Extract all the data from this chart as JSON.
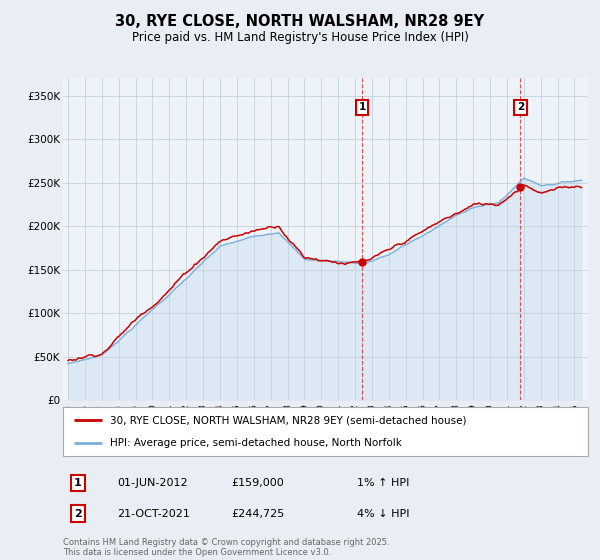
{
  "title": "30, RYE CLOSE, NORTH WALSHAM, NR28 9EY",
  "subtitle": "Price paid vs. HM Land Registry's House Price Index (HPI)",
  "ylim": [
    0,
    370000
  ],
  "xlim_start": 1994.7,
  "xlim_end": 2025.8,
  "transaction1_date": "01-JUN-2012",
  "transaction1_price": 159000,
  "transaction1_label": "1% ↑ HPI",
  "transaction2_date": "21-OCT-2021",
  "transaction2_price": 244725,
  "transaction2_label": "4% ↓ HPI",
  "legend_line1": "30, RYE CLOSE, NORTH WALSHAM, NR28 9EY (semi-detached house)",
  "legend_line2": "HPI: Average price, semi-detached house, North Norfolk",
  "footer": "Contains HM Land Registry data © Crown copyright and database right 2025.\nThis data is licensed under the Open Government Licence v3.0.",
  "line_color": "#cc0000",
  "hpi_color": "#7aafdb",
  "hpi_fill_color": "#dde8f5",
  "background_color": "#e8eef4",
  "plot_bg_color": "#edf3f9",
  "vline1_x": 2012.42,
  "vline2_x": 2021.8,
  "t1_x": 2012.42,
  "t1_y": 159000,
  "t2_x": 2021.8,
  "t2_y": 244725
}
